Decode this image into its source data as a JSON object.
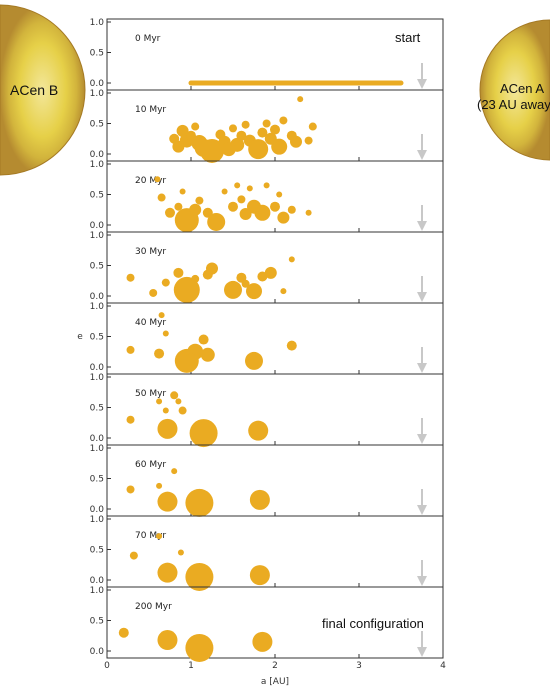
{
  "stars": {
    "left": {
      "label": "ACen B",
      "color": "#e8d24a"
    },
    "right": {
      "label_line1": "ACen A",
      "label_line2": "(23 AU away)",
      "color": "#e8d24a"
    }
  },
  "colors": {
    "planet": "#eaab22",
    "arrow": "#c8c8c8",
    "frame": "#333333"
  },
  "chart_data": {
    "type": "scatter",
    "xlabel": "a [AU]",
    "ylabel": "e",
    "xlim": [
      0,
      4
    ],
    "ylim": [
      0,
      1.0
    ],
    "xticks": [
      "0",
      "1",
      "2",
      "3",
      "4"
    ],
    "yticks": [
      "0.0",
      "0.5",
      "1.0"
    ],
    "annotations": {
      "start": "start",
      "final": "final configuration"
    },
    "panels": [
      {
        "time": "0 Myr",
        "start_line": {
          "x_from": 1.0,
          "x_to": 3.5,
          "e": 0.0
        },
        "points": []
      },
      {
        "time": "10 Myr",
        "points": [
          {
            "a": 0.9,
            "e": 0.38,
            "s": 6
          },
          {
            "a": 0.95,
            "e": 0.22,
            "s": 7
          },
          {
            "a": 1.0,
            "e": 0.3,
            "s": 5
          },
          {
            "a": 1.05,
            "e": 0.45,
            "s": 4
          },
          {
            "a": 1.1,
            "e": 0.18,
            "s": 8
          },
          {
            "a": 1.15,
            "e": 0.1,
            "s": 9
          },
          {
            "a": 1.25,
            "e": 0.05,
            "s": 12
          },
          {
            "a": 1.35,
            "e": 0.32,
            "s": 5
          },
          {
            "a": 1.4,
            "e": 0.2,
            "s": 6
          },
          {
            "a": 1.5,
            "e": 0.42,
            "s": 4
          },
          {
            "a": 1.55,
            "e": 0.15,
            "s": 7
          },
          {
            "a": 1.6,
            "e": 0.3,
            "s": 5
          },
          {
            "a": 1.65,
            "e": 0.48,
            "s": 4
          },
          {
            "a": 1.7,
            "e": 0.22,
            "s": 6
          },
          {
            "a": 1.8,
            "e": 0.08,
            "s": 10
          },
          {
            "a": 1.85,
            "e": 0.35,
            "s": 5
          },
          {
            "a": 1.9,
            "e": 0.5,
            "s": 4
          },
          {
            "a": 1.95,
            "e": 0.25,
            "s": 6
          },
          {
            "a": 2.0,
            "e": 0.4,
            "s": 5
          },
          {
            "a": 2.05,
            "e": 0.12,
            "s": 8
          },
          {
            "a": 2.1,
            "e": 0.55,
            "s": 4
          },
          {
            "a": 2.2,
            "e": 0.3,
            "s": 5
          },
          {
            "a": 2.25,
            "e": 0.2,
            "s": 6
          },
          {
            "a": 2.3,
            "e": 0.9,
            "s": 3
          },
          {
            "a": 2.4,
            "e": 0.22,
            "s": 4
          },
          {
            "a": 2.45,
            "e": 0.45,
            "s": 4
          },
          {
            "a": 0.8,
            "e": 0.25,
            "s": 5
          },
          {
            "a": 0.85,
            "e": 0.12,
            "s": 6
          },
          {
            "a": 1.45,
            "e": 0.08,
            "s": 7
          }
        ]
      },
      {
        "time": "20 Myr",
        "points": [
          {
            "a": 0.6,
            "e": 0.75,
            "s": 3
          },
          {
            "a": 0.65,
            "e": 0.45,
            "s": 4
          },
          {
            "a": 0.75,
            "e": 0.2,
            "s": 5
          },
          {
            "a": 0.85,
            "e": 0.3,
            "s": 4
          },
          {
            "a": 0.95,
            "e": 0.08,
            "s": 12
          },
          {
            "a": 1.05,
            "e": 0.25,
            "s": 6
          },
          {
            "a": 1.1,
            "e": 0.4,
            "s": 4
          },
          {
            "a": 1.2,
            "e": 0.2,
            "s": 5
          },
          {
            "a": 1.3,
            "e": 0.05,
            "s": 9
          },
          {
            "a": 1.4,
            "e": 0.55,
            "s": 3
          },
          {
            "a": 1.5,
            "e": 0.3,
            "s": 5
          },
          {
            "a": 1.6,
            "e": 0.42,
            "s": 4
          },
          {
            "a": 1.65,
            "e": 0.18,
            "s": 6
          },
          {
            "a": 1.7,
            "e": 0.6,
            "s": 3
          },
          {
            "a": 1.75,
            "e": 0.3,
            "s": 7
          },
          {
            "a": 1.85,
            "e": 0.2,
            "s": 8
          },
          {
            "a": 1.9,
            "e": 0.65,
            "s": 3
          },
          {
            "a": 2.0,
            "e": 0.3,
            "s": 5
          },
          {
            "a": 2.05,
            "e": 0.5,
            "s": 3
          },
          {
            "a": 2.1,
            "e": 0.12,
            "s": 6
          },
          {
            "a": 2.2,
            "e": 0.25,
            "s": 4
          },
          {
            "a": 2.4,
            "e": 0.2,
            "s": 3
          },
          {
            "a": 0.9,
            "e": 0.55,
            "s": 3
          },
          {
            "a": 1.55,
            "e": 0.65,
            "s": 3
          }
        ]
      },
      {
        "time": "30 Myr",
        "points": [
          {
            "a": 0.28,
            "e": 0.3,
            "s": 4
          },
          {
            "a": 0.55,
            "e": 0.05,
            "s": 4
          },
          {
            "a": 0.7,
            "e": 0.22,
            "s": 4
          },
          {
            "a": 0.85,
            "e": 0.38,
            "s": 5
          },
          {
            "a": 0.95,
            "e": 0.1,
            "s": 13
          },
          {
            "a": 1.05,
            "e": 0.28,
            "s": 4
          },
          {
            "a": 1.2,
            "e": 0.35,
            "s": 5
          },
          {
            "a": 1.25,
            "e": 0.45,
            "s": 6
          },
          {
            "a": 1.5,
            "e": 0.1,
            "s": 9
          },
          {
            "a": 1.6,
            "e": 0.3,
            "s": 5
          },
          {
            "a": 1.65,
            "e": 0.2,
            "s": 4
          },
          {
            "a": 1.75,
            "e": 0.08,
            "s": 8
          },
          {
            "a": 1.85,
            "e": 0.32,
            "s": 5
          },
          {
            "a": 1.95,
            "e": 0.38,
            "s": 6
          },
          {
            "a": 2.1,
            "e": 0.08,
            "s": 3
          },
          {
            "a": 2.2,
            "e": 0.6,
            "s": 3
          }
        ]
      },
      {
        "time": "40 Myr",
        "points": [
          {
            "a": 0.28,
            "e": 0.28,
            "s": 4
          },
          {
            "a": 0.65,
            "e": 0.85,
            "s": 3
          },
          {
            "a": 0.7,
            "e": 0.55,
            "s": 3
          },
          {
            "a": 0.62,
            "e": 0.22,
            "s": 5
          },
          {
            "a": 0.95,
            "e": 0.1,
            "s": 12
          },
          {
            "a": 1.05,
            "e": 0.25,
            "s": 8
          },
          {
            "a": 1.15,
            "e": 0.45,
            "s": 5
          },
          {
            "a": 1.2,
            "e": 0.2,
            "s": 7
          },
          {
            "a": 1.75,
            "e": 0.1,
            "s": 9
          },
          {
            "a": 2.2,
            "e": 0.35,
            "s": 5
          },
          {
            "a": 1.0,
            "e": 0.12,
            "s": 6
          }
        ]
      },
      {
        "time": "50 Myr",
        "points": [
          {
            "a": 0.28,
            "e": 0.3,
            "s": 4
          },
          {
            "a": 0.62,
            "e": 0.6,
            "s": 3
          },
          {
            "a": 0.7,
            "e": 0.45,
            "s": 3
          },
          {
            "a": 0.8,
            "e": 0.7,
            "s": 4
          },
          {
            "a": 0.85,
            "e": 0.6,
            "s": 3
          },
          {
            "a": 0.9,
            "e": 0.45,
            "s": 4
          },
          {
            "a": 0.72,
            "e": 0.15,
            "s": 10
          },
          {
            "a": 1.15,
            "e": 0.08,
            "s": 14
          },
          {
            "a": 1.8,
            "e": 0.12,
            "s": 10
          }
        ]
      },
      {
        "time": "60 Myr",
        "points": [
          {
            "a": 0.28,
            "e": 0.32,
            "s": 4
          },
          {
            "a": 0.62,
            "e": 0.38,
            "s": 3
          },
          {
            "a": 0.75,
            "e": 0.2,
            "s": 4
          },
          {
            "a": 0.8,
            "e": 0.62,
            "s": 3
          },
          {
            "a": 0.72,
            "e": 0.12,
            "s": 10
          },
          {
            "a": 1.1,
            "e": 0.1,
            "s": 14
          },
          {
            "a": 1.82,
            "e": 0.15,
            "s": 10
          }
        ]
      },
      {
        "time": "70 Myr",
        "points": [
          {
            "a": 0.32,
            "e": 0.4,
            "s": 4
          },
          {
            "a": 0.62,
            "e": 0.72,
            "s": 3
          },
          {
            "a": 0.88,
            "e": 0.45,
            "s": 3
          },
          {
            "a": 0.72,
            "e": 0.12,
            "s": 10
          },
          {
            "a": 1.1,
            "e": 0.05,
            "s": 14
          },
          {
            "a": 1.82,
            "e": 0.08,
            "s": 10
          }
        ]
      },
      {
        "time": "200 Myr",
        "points": [
          {
            "a": 0.2,
            "e": 0.3,
            "s": 5
          },
          {
            "a": 0.72,
            "e": 0.18,
            "s": 10
          },
          {
            "a": 1.1,
            "e": 0.05,
            "s": 14
          },
          {
            "a": 1.85,
            "e": 0.15,
            "s": 10
          }
        ]
      }
    ]
  }
}
